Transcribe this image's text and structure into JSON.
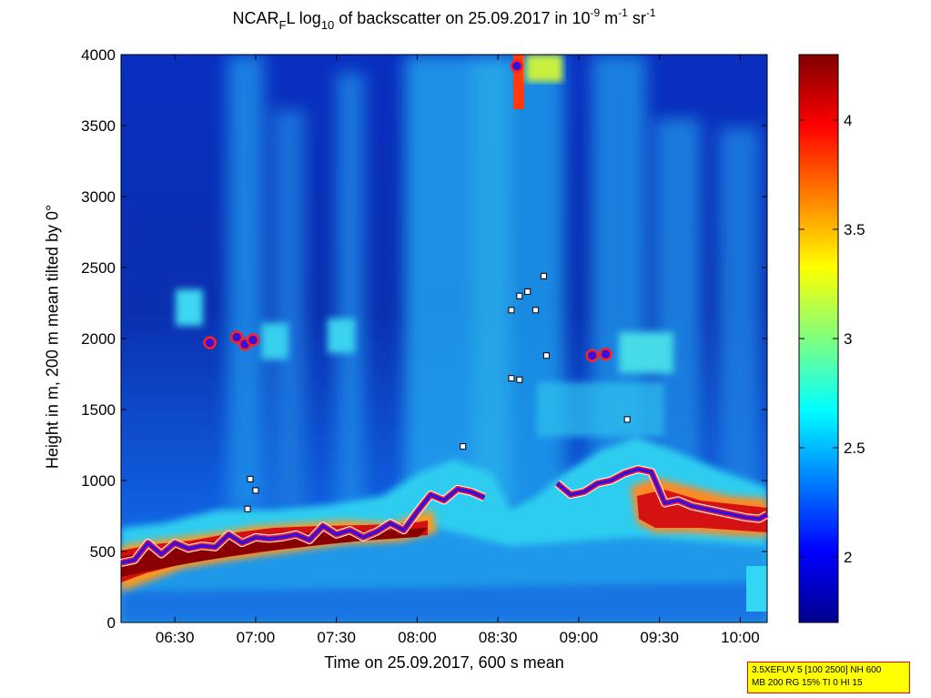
{
  "chart_data": {
    "type": "heatmap",
    "title": {
      "pre": "NCAR",
      "sub1": "F",
      "mid1": "L log",
      "sub2": "10",
      "mid2": " of backscatter on 25.09.2017 in 10",
      "sup1": "-9",
      "mid3": " m",
      "sup2": "-1",
      "mid4": " sr",
      "sup3": "-1"
    },
    "xlabel": "Time on 25.09.2017, 600 s mean",
    "ylabel": "Height in m, 200 m mean tilted by 0°",
    "x_range": [
      "06:10",
      "10:10"
    ],
    "x_ticks": [
      "06:30",
      "07:00",
      "07:30",
      "08:00",
      "08:30",
      "09:00",
      "09:30",
      "10:00"
    ],
    "y_range": [
      0,
      4000
    ],
    "y_ticks": [
      "0",
      "500",
      "1000",
      "1500",
      "2000",
      "2500",
      "3000",
      "3500",
      "4000"
    ],
    "colorbar": {
      "colormap": "jet",
      "range": [
        1.7,
        4.3
      ],
      "ticks": [
        "2",
        "2.5",
        "3",
        "3.5",
        "4"
      ]
    },
    "boundary_layer_height": {
      "x": [
        "06:10",
        "06:15",
        "06:20",
        "06:25",
        "06:30",
        "06:35",
        "06:40",
        "06:45",
        "06:50",
        "06:55",
        "07:00",
        "07:05",
        "07:10",
        "07:15",
        "07:20",
        "07:25",
        "07:30",
        "07:35",
        "07:40",
        "07:45",
        "07:50",
        "07:55",
        "08:00",
        "08:05",
        "08:10",
        "08:15",
        "08:20",
        "08:25"
      ],
      "y": [
        420,
        440,
        560,
        480,
        560,
        520,
        540,
        530,
        620,
        560,
        600,
        590,
        600,
        620,
        580,
        680,
        620,
        650,
        600,
        640,
        700,
        650,
        780,
        900,
        860,
        940,
        920,
        880
      ]
    },
    "boundary_layer_height_late": {
      "x": [
        "08:52",
        "08:57",
        "09:02",
        "09:07",
        "09:12",
        "09:17",
        "09:22",
        "09:27",
        "09:32",
        "09:37",
        "09:42",
        "09:47",
        "09:52",
        "09:57",
        "10:02",
        "10:07",
        "10:10"
      ],
      "y": [
        980,
        900,
        920,
        980,
        1000,
        1050,
        1080,
        1060,
        840,
        860,
        820,
        800,
        780,
        760,
        740,
        730,
        760
      ]
    },
    "layer_marks_upper": [
      {
        "x": "06:43",
        "y": 1970
      },
      {
        "x": "06:53",
        "y": 2010
      },
      {
        "x": "06:56",
        "y": 1960
      },
      {
        "x": "06:59",
        "y": 1990
      },
      {
        "x": "08:37",
        "y": 3920
      },
      {
        "x": "09:05",
        "y": 1880
      },
      {
        "x": "09:10",
        "y": 1890
      }
    ],
    "cloud_base_marks": [
      {
        "x": "08:35",
        "y": 2200
      },
      {
        "x": "08:38",
        "y": 2300
      },
      {
        "x": "08:41",
        "y": 2330
      },
      {
        "x": "08:44",
        "y": 2200
      },
      {
        "x": "08:47",
        "y": 2440
      },
      {
        "x": "08:35",
        "y": 1720
      },
      {
        "x": "08:38",
        "y": 1710
      },
      {
        "x": "08:48",
        "y": 1880
      },
      {
        "x": "09:18",
        "y": 1430
      },
      {
        "x": "08:17",
        "y": 1240
      },
      {
        "x": "06:58",
        "y": 1010
      },
      {
        "x": "07:00",
        "y": 930
      },
      {
        "x": "06:57",
        "y": 800
      }
    ],
    "info_text": {
      "line1": "3.5XEFUV 5 [100 2500] NH 600",
      "line2": "MB 200 RG 15% TI 0 HI 15"
    }
  }
}
